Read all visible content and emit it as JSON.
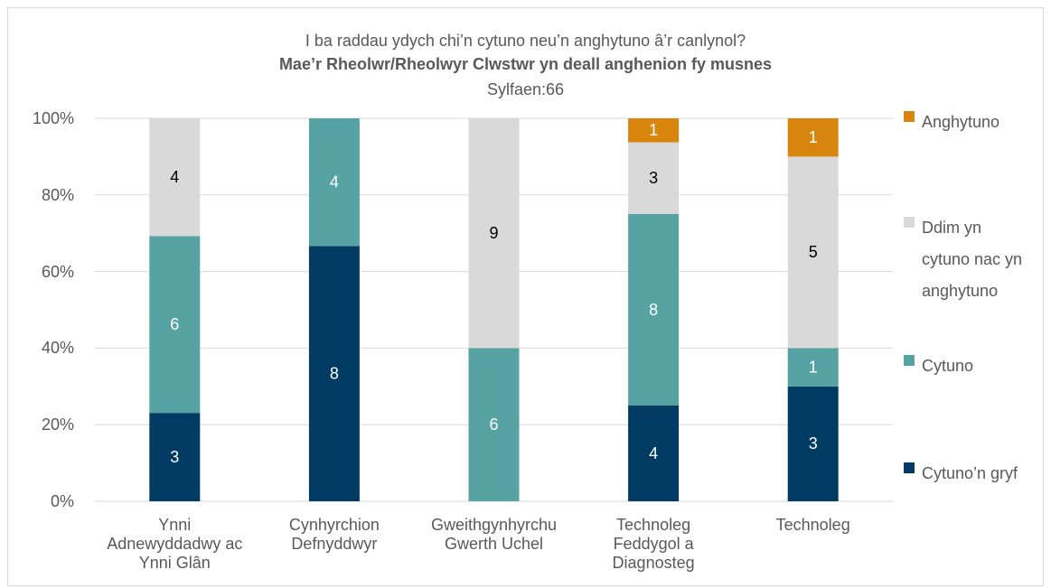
{
  "chart_data": {
    "type": "bar",
    "stacking": "percent",
    "title": "I ba raddau ydych chi’n cytuno neu’n anghytuno â’r canlynol?",
    "subtitle": "Mae’r Rheolwr/Rheolwyr Clwstwr yn deall anghenion fy musnes",
    "note": "Sylfaen:66",
    "categories": [
      "Ynni Adnewyddadwy ac Ynni Glân",
      "Cynhyrchion Defnyddwyr",
      "Gweithgynhyrchu Gwerth Uchel",
      "Technoleg Feddygol a Diagnosteg",
      "Technoleg"
    ],
    "series": [
      {
        "name": "Cytuno’n gryf",
        "color": "#003b64",
        "values": [
          3,
          8,
          null,
          4,
          3
        ]
      },
      {
        "name": "Cytuno",
        "color": "#57a3a4",
        "values": [
          6,
          4,
          6,
          8,
          1
        ]
      },
      {
        "name": "Ddim yn cytuno nac yn anghytuno",
        "color": "#d9d9d9",
        "values": [
          4,
          null,
          9,
          3,
          5
        ]
      },
      {
        "name": "Anghytuno",
        "color": "#d9860e",
        "values": [
          null,
          null,
          null,
          1,
          1
        ]
      }
    ],
    "ylim": [
      0,
      100
    ],
    "yticks": [
      {
        "value": 0,
        "label": "0%"
      },
      {
        "value": 20,
        "label": "20%"
      },
      {
        "value": 40,
        "label": "40%"
      },
      {
        "value": 60,
        "label": "60%"
      },
      {
        "value": 80,
        "label": "80%"
      },
      {
        "value": 100,
        "label": "100%"
      }
    ],
    "grid": true,
    "legend": "right"
  }
}
